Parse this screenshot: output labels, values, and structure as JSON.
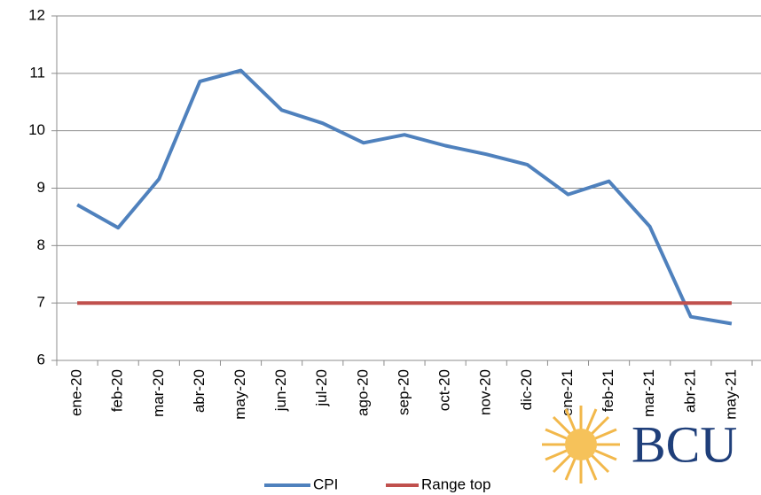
{
  "chart_data": {
    "type": "line",
    "categories": [
      "ene-20",
      "feb-20",
      "mar-20",
      "abr-20",
      "may-20",
      "jun-20",
      "jul-20",
      "ago-20",
      "sep-20",
      "oct-20",
      "nov-20",
      "dic-20",
      "ene-21",
      "feb-21",
      "mar-21",
      "abr-21",
      "may-21"
    ],
    "series": [
      {
        "name": "CPI",
        "color": "#4f81bd",
        "values": [
          8.71,
          8.31,
          9.16,
          10.86,
          11.05,
          10.36,
          10.13,
          9.79,
          9.93,
          9.74,
          9.59,
          9.41,
          8.89,
          9.12,
          8.33,
          6.76,
          6.64
        ]
      },
      {
        "name": "Range top",
        "color": "#c0504d",
        "values": [
          7,
          7,
          7,
          7,
          7,
          7,
          7,
          7,
          7,
          7,
          7,
          7,
          7,
          7,
          7,
          7,
          7
        ]
      }
    ],
    "ylim": [
      6,
      12
    ],
    "yticks": [
      6,
      7,
      8,
      9,
      10,
      11,
      12
    ],
    "grid": true,
    "legend": "bottom"
  },
  "logo_text": "BCU"
}
